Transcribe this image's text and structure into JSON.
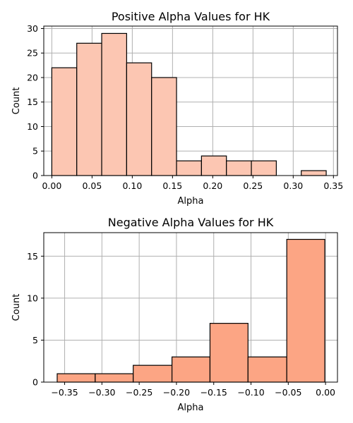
{
  "chart_data": [
    {
      "type": "bar",
      "title": "Positive Alpha Values for HK",
      "xlabel": "Alpha",
      "ylabel": "Count",
      "bar_color": "#fcc6b2",
      "grid": true,
      "xlim": [
        -0.01,
        0.355
      ],
      "ylim": [
        0,
        30.5
      ],
      "x_ticks": [
        0.0,
        0.05,
        0.1,
        0.15,
        0.2,
        0.25,
        0.3,
        0.35
      ],
      "x_tick_labels": [
        "0.00",
        "0.05",
        "0.10",
        "0.15",
        "0.20",
        "0.25",
        "0.30",
        "0.35"
      ],
      "y_ticks": [
        0,
        5,
        10,
        15,
        20,
        25,
        30
      ],
      "y_tick_labels": [
        "0",
        "5",
        "10",
        "15",
        "20",
        "25",
        "30"
      ],
      "bins": [
        {
          "x0": 0.0,
          "x1": 0.031,
          "count": 22
        },
        {
          "x0": 0.031,
          "x1": 0.062,
          "count": 27
        },
        {
          "x0": 0.062,
          "x1": 0.093,
          "count": 29
        },
        {
          "x0": 0.093,
          "x1": 0.124,
          "count": 23
        },
        {
          "x0": 0.124,
          "x1": 0.155,
          "count": 20
        },
        {
          "x0": 0.155,
          "x1": 0.186,
          "count": 3
        },
        {
          "x0": 0.186,
          "x1": 0.217,
          "count": 4
        },
        {
          "x0": 0.217,
          "x1": 0.248,
          "count": 3
        },
        {
          "x0": 0.248,
          "x1": 0.279,
          "count": 3
        },
        {
          "x0": 0.279,
          "x1": 0.31,
          "count": 0
        },
        {
          "x0": 0.31,
          "x1": 0.341,
          "count": 1
        }
      ]
    },
    {
      "type": "bar",
      "title": "Negative Alpha Values for HK",
      "xlabel": "Alpha",
      "ylabel": "Count",
      "bar_color": "#fca584",
      "grid": true,
      "xlim": [
        -0.378,
        0.016
      ],
      "ylim": [
        0,
        17.8
      ],
      "x_ticks": [
        -0.35,
        -0.3,
        -0.25,
        -0.2,
        -0.15,
        -0.1,
        -0.05,
        0.0
      ],
      "x_tick_labels": [
        "−0.35",
        "−0.30",
        "−0.25",
        "−0.20",
        "−0.15",
        "−0.10",
        "−0.05",
        "0.00"
      ],
      "y_ticks": [
        0,
        5,
        10,
        15
      ],
      "y_tick_labels": [
        "0",
        "5",
        "10",
        "15"
      ],
      "bins": [
        {
          "x0": -0.36,
          "x1": -0.309,
          "count": 1
        },
        {
          "x0": -0.309,
          "x1": -0.258,
          "count": 1
        },
        {
          "x0": -0.258,
          "x1": -0.206,
          "count": 2
        },
        {
          "x0": -0.206,
          "x1": -0.155,
          "count": 3
        },
        {
          "x0": -0.155,
          "x1": -0.104,
          "count": 7
        },
        {
          "x0": -0.104,
          "x1": -0.052,
          "count": 3
        },
        {
          "x0": -0.052,
          "x1": -0.001,
          "count": 17
        }
      ]
    }
  ]
}
